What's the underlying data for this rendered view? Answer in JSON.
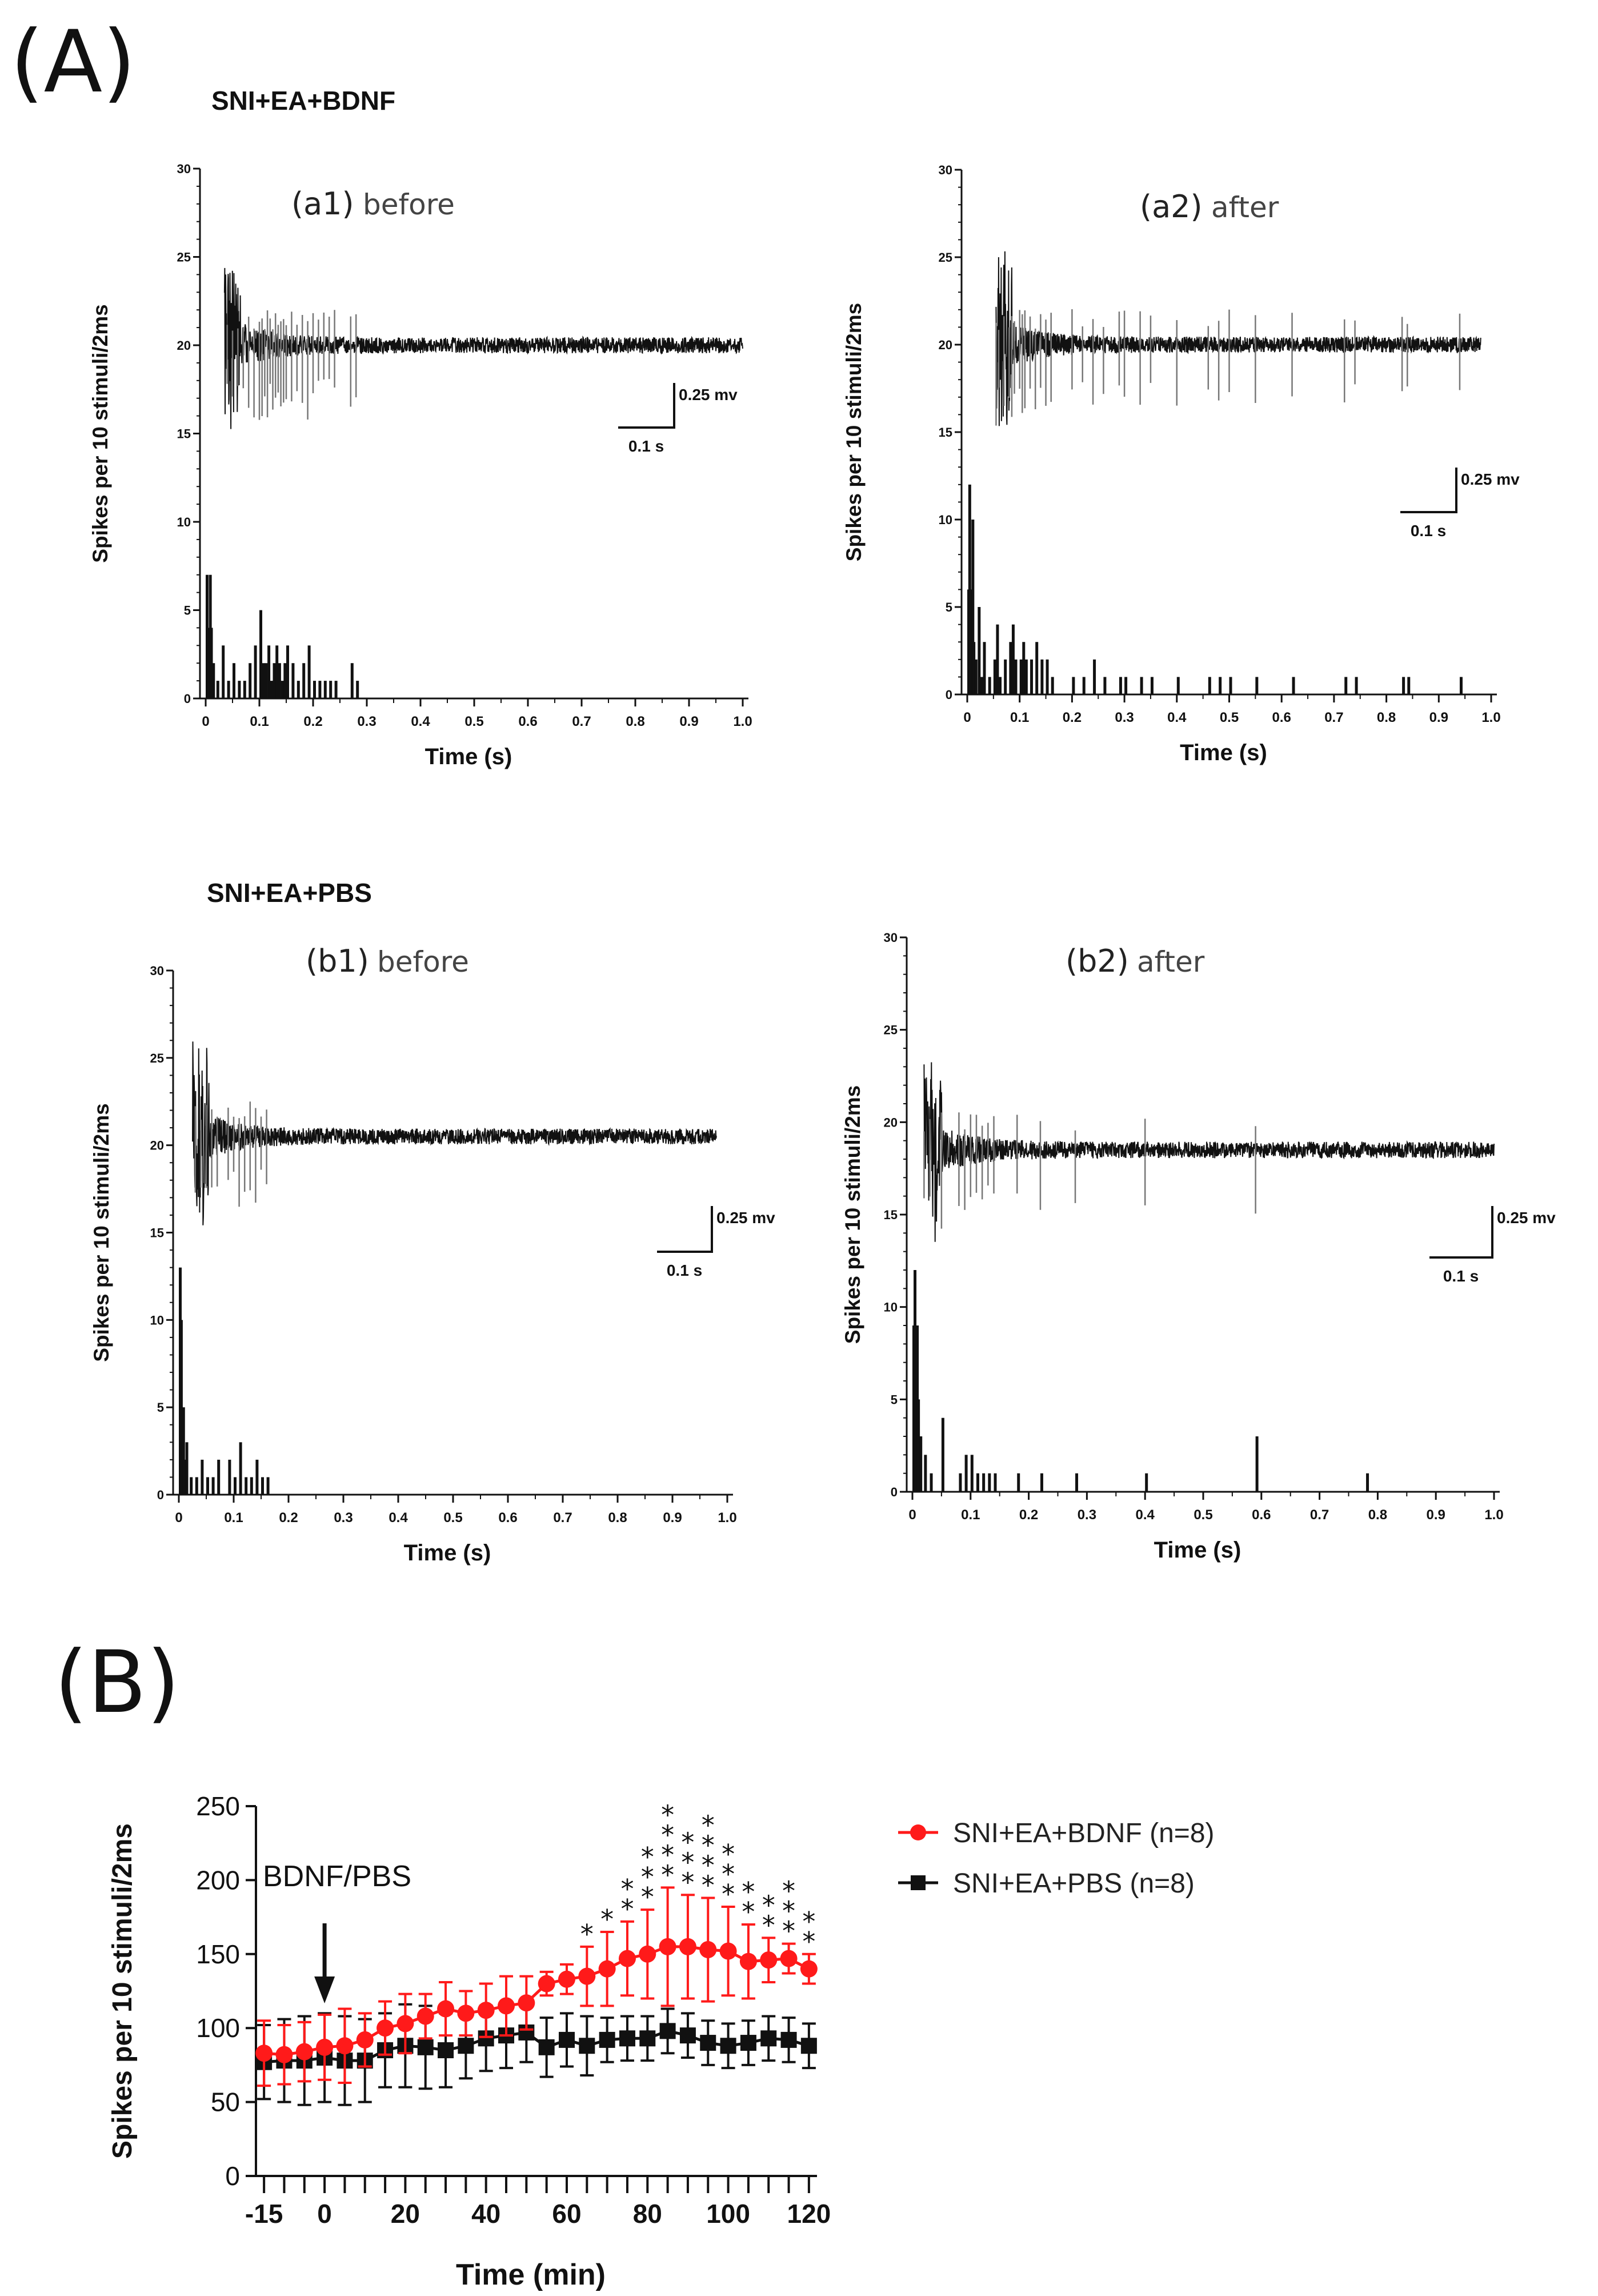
{
  "figure": {
    "panel_a_label": "(A)",
    "panel_b_label": "(B)",
    "group_bdnf": "SNI+EA+BDNF",
    "group_pbs": "SNI+EA+PBS"
  },
  "chart_data": [
    {
      "id": "a1",
      "type": "bar",
      "subtitle": "(a1) before",
      "subtitle_tag": "(a1)",
      "subtitle_word": "before",
      "xlabel": "Time (s)",
      "ylabel": "Spikes per 10 stimuli/2ms",
      "xlim": [
        0,
        1.0
      ],
      "ylim": [
        0,
        30
      ],
      "xticks": [
        "0",
        "0.1",
        "0.2",
        "0.3",
        "0.4",
        "0.5",
        "0.6",
        "0.7",
        "0.8",
        "0.9",
        "1.0"
      ],
      "yticks": [
        "0",
        "5",
        "10",
        "15",
        "20",
        "25",
        "30"
      ],
      "scale_bar": {
        "amplitude": "0.25 mv",
        "time": "0.1 s"
      },
      "trace_baseline": 20,
      "bins_s": [
        0.0,
        0.002,
        0.004,
        0.006,
        0.008,
        0.012,
        0.02,
        0.03,
        0.04,
        0.05,
        0.06,
        0.07,
        0.08,
        0.09,
        0.1,
        0.105,
        0.11,
        0.115,
        0.12,
        0.125,
        0.13,
        0.135,
        0.14,
        0.145,
        0.15,
        0.16,
        0.17,
        0.18,
        0.19,
        0.2,
        0.21,
        0.22,
        0.23,
        0.24,
        0.27,
        0.28
      ],
      "counts": [
        7,
        4,
        3,
        7,
        4,
        2,
        1,
        3,
        1,
        2,
        1,
        1,
        2,
        3,
        5,
        2,
        2,
        3,
        1,
        2,
        3,
        2,
        1,
        2,
        3,
        2,
        1,
        2,
        3,
        1,
        1,
        1,
        1,
        1,
        2,
        1
      ]
    },
    {
      "id": "a2",
      "type": "bar",
      "subtitle": "(a2) after",
      "subtitle_tag": "(a2)",
      "subtitle_word": "after",
      "xlabel": "Time (s)",
      "ylabel": "Spikes per 10 stimuli/2ms",
      "xlim": [
        0,
        1.0
      ],
      "ylim": [
        0,
        30
      ],
      "xticks": [
        "0",
        "0.1",
        "0.2",
        "0.3",
        "0.4",
        "0.5",
        "0.6",
        "0.7",
        "0.8",
        "0.9",
        "1.0"
      ],
      "yticks": [
        "0",
        "5",
        "10",
        "15",
        "20",
        "25",
        "30"
      ],
      "scale_bar": {
        "amplitude": "0.25 mv",
        "time": "0.1 s"
      },
      "trace_baseline": 20,
      "bins_s": [
        0.0,
        0.002,
        0.004,
        0.006,
        0.008,
        0.01,
        0.014,
        0.02,
        0.025,
        0.03,
        0.04,
        0.05,
        0.055,
        0.06,
        0.07,
        0.08,
        0.085,
        0.09,
        0.1,
        0.105,
        0.11,
        0.12,
        0.13,
        0.14,
        0.15,
        0.16,
        0.2,
        0.22,
        0.24,
        0.26,
        0.29,
        0.3,
        0.33,
        0.35,
        0.4,
        0.46,
        0.48,
        0.5,
        0.55,
        0.62,
        0.72,
        0.74,
        0.83,
        0.84,
        0.94
      ],
      "counts": [
        6,
        12,
        6,
        4,
        10,
        3,
        2,
        5,
        1,
        3,
        1,
        2,
        4,
        1,
        2,
        3,
        4,
        2,
        2,
        3,
        2,
        2,
        3,
        2,
        2,
        1,
        1,
        1,
        2,
        1,
        1,
        1,
        1,
        1,
        1,
        1,
        1,
        1,
        1,
        1,
        1,
        1,
        1,
        1,
        1
      ]
    },
    {
      "id": "b1",
      "type": "bar",
      "subtitle": "(b1) before",
      "subtitle_tag": "(b1)",
      "subtitle_word": "before",
      "xlabel": "Time (s)",
      "ylabel": "Spikes per 10 stimuli/2ms",
      "xlim": [
        0,
        1.0
      ],
      "ylim": [
        0,
        30
      ],
      "xticks": [
        "0",
        "0.1",
        "0.2",
        "0.3",
        "0.4",
        "0.5",
        "0.6",
        "0.7",
        "0.8",
        "0.9",
        "1.0"
      ],
      "yticks": [
        "0",
        "5",
        "10",
        "15",
        "20",
        "25",
        "30"
      ],
      "scale_bar": {
        "amplitude": "0.25 mv",
        "time": "0.1 s"
      },
      "trace_baseline": 20.5,
      "bins_s": [
        0.0,
        0.002,
        0.004,
        0.006,
        0.008,
        0.012,
        0.02,
        0.03,
        0.04,
        0.05,
        0.06,
        0.07,
        0.09,
        0.1,
        0.11,
        0.12,
        0.13,
        0.14,
        0.15,
        0.16
      ],
      "counts": [
        13,
        10,
        3,
        5,
        2,
        3,
        1,
        1,
        2,
        1,
        1,
        2,
        2,
        1,
        3,
        1,
        1,
        2,
        1,
        1
      ]
    },
    {
      "id": "b2",
      "type": "bar",
      "subtitle": "(b2) after",
      "subtitle_tag": "(b2)",
      "subtitle_word": "after",
      "xlabel": "Time (s)",
      "ylabel": "Spikes per 10 stimuli/2ms",
      "xlim": [
        0,
        1.0
      ],
      "ylim": [
        0,
        30
      ],
      "xticks": [
        "0",
        "0.1",
        "0.2",
        "0.3",
        "0.4",
        "0.5",
        "0.6",
        "0.7",
        "0.8",
        "0.9",
        "1.0"
      ],
      "yticks": [
        "0",
        "5",
        "10",
        "15",
        "20",
        "25",
        "30"
      ],
      "scale_bar": {
        "amplitude": "0.25 mv",
        "time": "0.1 s"
      },
      "trace_baseline": 18.5,
      "bins_s": [
        0.0,
        0.002,
        0.004,
        0.006,
        0.008,
        0.012,
        0.02,
        0.03,
        0.05,
        0.08,
        0.09,
        0.1,
        0.11,
        0.12,
        0.13,
        0.14,
        0.18,
        0.22,
        0.28,
        0.4,
        0.59,
        0.78
      ],
      "counts": [
        9,
        12,
        8,
        9,
        5,
        3,
        2,
        1,
        4,
        1,
        2,
        2,
        1,
        1,
        1,
        1,
        1,
        1,
        1,
        1,
        3,
        1
      ]
    },
    {
      "id": "B",
      "type": "line",
      "xlabel": "Time (min)",
      "ylabel": "Spikes per 10 stimuli/2ms",
      "xlim": [
        -17,
        122
      ],
      "ylim": [
        0,
        250
      ],
      "xticks": [
        -15,
        0,
        20,
        40,
        60,
        80,
        100,
        120
      ],
      "yticks": [
        0,
        50,
        100,
        150,
        200,
        250
      ],
      "annotation": "BDNF/PBS",
      "annotation_x": 0,
      "x": [
        -15,
        -10,
        -5,
        0,
        5,
        10,
        15,
        20,
        25,
        30,
        35,
        40,
        45,
        50,
        55,
        60,
        65,
        70,
        75,
        80,
        85,
        90,
        95,
        100,
        105,
        110,
        115,
        120
      ],
      "series": [
        {
          "name": "SNI+EA+BDNF (n=8)",
          "color": "#ff1a1a",
          "marker": "circle",
          "values": [
            83,
            82,
            84,
            87,
            88,
            92,
            100,
            103,
            108,
            113,
            110,
            112,
            115,
            117,
            130,
            133,
            135,
            140,
            147,
            150,
            155,
            155,
            153,
            152,
            145,
            146,
            147,
            140
          ],
          "errors": [
            22,
            20,
            20,
            22,
            25,
            18,
            18,
            20,
            15,
            18,
            15,
            18,
            20,
            18,
            8,
            10,
            20,
            25,
            25,
            30,
            40,
            35,
            35,
            30,
            25,
            15,
            10,
            10
          ],
          "significance": [
            "",
            "",
            "",
            "",
            "",
            "",
            "",
            "",
            "",
            "",
            "",
            "",
            "",
            "",
            "",
            "",
            "*",
            "*",
            "**",
            "***",
            "****",
            "***",
            "****",
            "***",
            "**",
            "**",
            "***",
            "**"
          ]
        },
        {
          "name": "SNI+EA+PBS (n=8)",
          "color": "#111111",
          "marker": "square",
          "values": [
            77,
            78,
            78,
            80,
            78,
            78,
            85,
            88,
            87,
            85,
            88,
            93,
            95,
            97,
            87,
            92,
            88,
            92,
            93,
            93,
            98,
            95,
            90,
            88,
            90,
            93,
            92,
            88
          ],
          "errors": [
            25,
            28,
            30,
            30,
            30,
            28,
            25,
            28,
            28,
            25,
            22,
            22,
            22,
            20,
            20,
            18,
            20,
            15,
            15,
            15,
            15,
            15,
            15,
            15,
            15,
            15,
            15,
            15
          ]
        }
      ]
    }
  ]
}
